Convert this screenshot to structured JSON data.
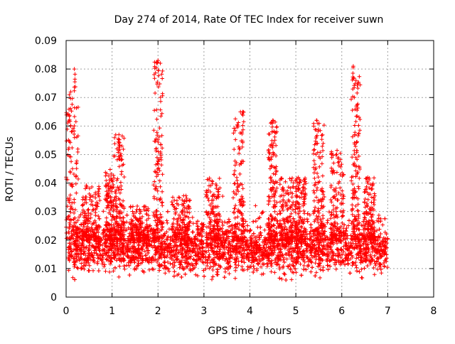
{
  "chart_data": {
    "type": "scatter",
    "title": "Day 274 of 2014, Rate Of TEC Index for receiver suwn",
    "xlabel": "GPS time / hours",
    "ylabel": "ROTI / TECUs",
    "xlim": [
      0,
      8
    ],
    "ylim": [
      0,
      0.09
    ],
    "x_ticks": [
      "0",
      "1",
      "2",
      "3",
      "4",
      "5",
      "6",
      "7",
      "8"
    ],
    "y_ticks": [
      "0",
      "0.01",
      "0.02",
      "0.03",
      "0.04",
      "0.05",
      "0.06",
      "0.07",
      "0.08",
      "0.09"
    ],
    "grid": true,
    "marker": "+",
    "marker_color": "#ff0000",
    "data_x_range": [
      0.05,
      7.0
    ],
    "baseline_roti": [
      0.005,
      0.025
    ],
    "notable_peaks": [
      {
        "x": 0.1,
        "y": 0.072
      },
      {
        "x": 0.18,
        "y": 0.08
      },
      {
        "x": 1.15,
        "y": 0.057
      },
      {
        "x": 2.0,
        "y": 0.083
      },
      {
        "x": 3.85,
        "y": 0.065
      },
      {
        "x": 4.5,
        "y": 0.062
      },
      {
        "x": 5.45,
        "y": 0.062
      },
      {
        "x": 6.25,
        "y": 0.081
      },
      {
        "x": 6.35,
        "y": 0.075
      }
    ],
    "bursts": [
      {
        "center": 0.12,
        "spread": 0.15,
        "max": 0.072
      },
      {
        "center": 0.55,
        "spread": 0.2,
        "max": 0.04
      },
      {
        "center": 0.95,
        "spread": 0.1,
        "max": 0.045
      },
      {
        "center": 1.15,
        "spread": 0.12,
        "max": 0.057
      },
      {
        "center": 1.6,
        "spread": 0.2,
        "max": 0.032
      },
      {
        "center": 2.0,
        "spread": 0.1,
        "max": 0.083
      },
      {
        "center": 2.5,
        "spread": 0.2,
        "max": 0.036
      },
      {
        "center": 3.2,
        "spread": 0.15,
        "max": 0.042
      },
      {
        "center": 3.75,
        "spread": 0.12,
        "max": 0.065
      },
      {
        "center": 4.5,
        "spread": 0.1,
        "max": 0.062
      },
      {
        "center": 4.8,
        "spread": 0.15,
        "max": 0.042
      },
      {
        "center": 5.1,
        "spread": 0.12,
        "max": 0.042
      },
      {
        "center": 5.5,
        "spread": 0.12,
        "max": 0.062
      },
      {
        "center": 5.9,
        "spread": 0.15,
        "max": 0.052
      },
      {
        "center": 6.3,
        "spread": 0.1,
        "max": 0.081
      },
      {
        "center": 6.6,
        "spread": 0.12,
        "max": 0.042
      }
    ]
  }
}
